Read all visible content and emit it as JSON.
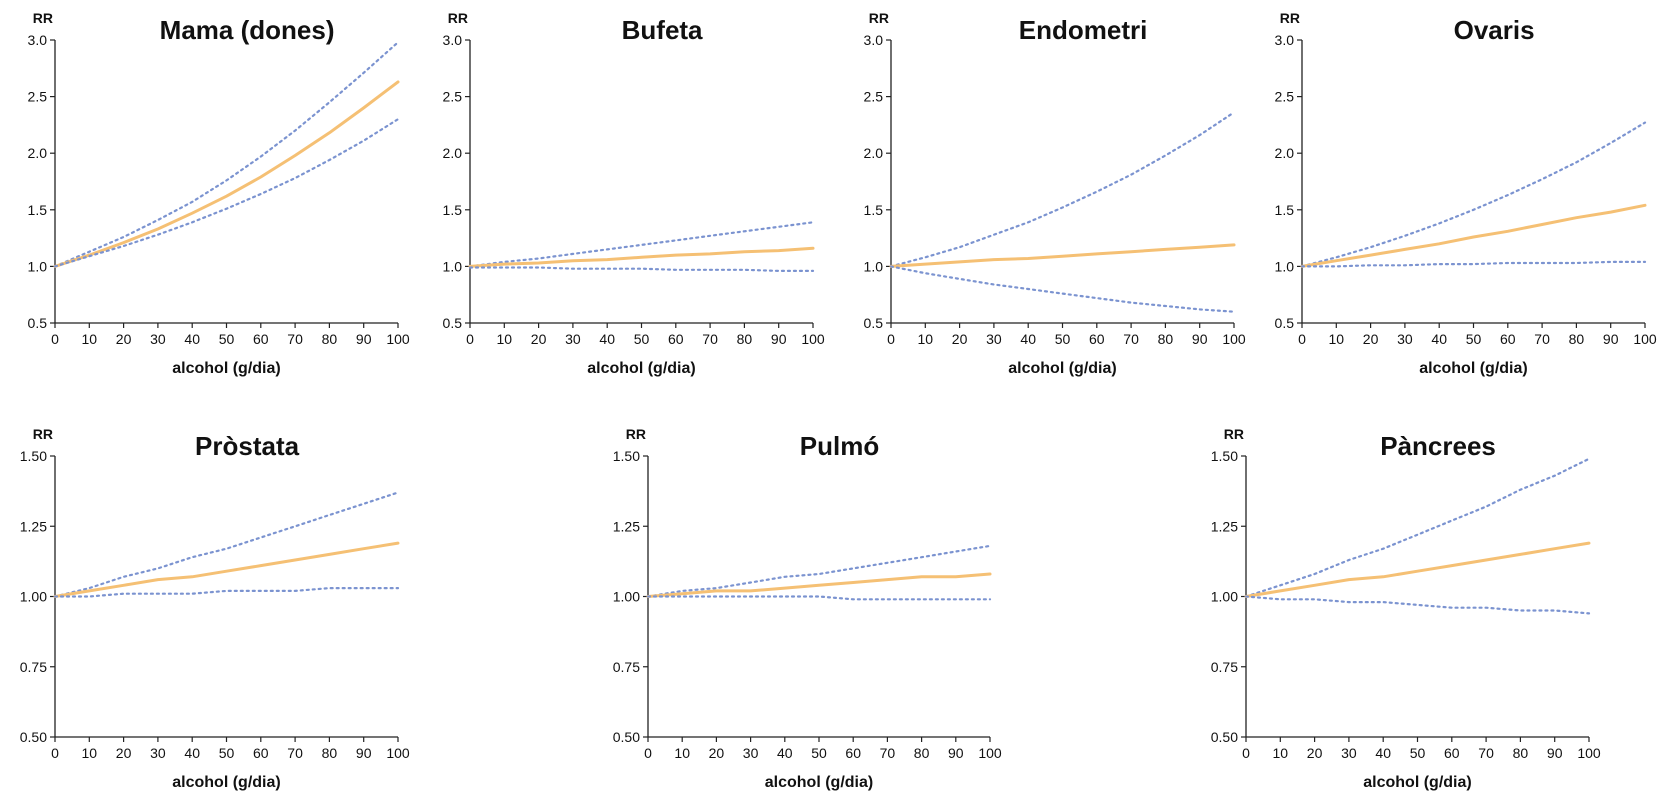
{
  "chart_data": [
    {
      "type": "line",
      "title": "Mama (dones)",
      "xlabel": "alcohol (g/dia)",
      "ylabel": "RR",
      "xlim": [
        0,
        100
      ],
      "ylim": [
        0.5,
        3.0
      ],
      "xticks": [
        "0",
        "10",
        "20",
        "30",
        "40",
        "50",
        "60",
        "70",
        "80",
        "90",
        "100"
      ],
      "yticks": [
        "0.5",
        "1.0",
        "1.5",
        "2.0",
        "2.5",
        "3.0"
      ],
      "x": [
        0,
        10,
        20,
        30,
        40,
        50,
        60,
        70,
        80,
        90,
        100
      ],
      "series": [
        {
          "role": "upper",
          "color": "#7b93d0",
          "values": [
            1.0,
            1.13,
            1.26,
            1.41,
            1.57,
            1.76,
            1.97,
            2.2,
            2.45,
            2.71,
            2.98
          ]
        },
        {
          "role": "estimate",
          "color": "#f5c074",
          "values": [
            1.0,
            1.1,
            1.21,
            1.33,
            1.47,
            1.62,
            1.79,
            1.98,
            2.18,
            2.4,
            2.63
          ]
        },
        {
          "role": "lower",
          "color": "#7b93d0",
          "values": [
            1.0,
            1.09,
            1.18,
            1.28,
            1.39,
            1.51,
            1.64,
            1.78,
            1.94,
            2.11,
            2.3
          ]
        }
      ]
    },
    {
      "type": "line",
      "title": "Bufeta",
      "xlabel": "alcohol (g/dia)",
      "ylabel": "RR",
      "xlim": [
        0,
        100
      ],
      "ylim": [
        0.5,
        3.0
      ],
      "xticks": [
        "0",
        "10",
        "20",
        "30",
        "40",
        "50",
        "60",
        "70",
        "80",
        "90",
        "100"
      ],
      "yticks": [
        "0.5",
        "1.0",
        "1.5",
        "2.0",
        "2.5",
        "3.0"
      ],
      "x": [
        0,
        10,
        20,
        30,
        40,
        50,
        60,
        70,
        80,
        90,
        100
      ],
      "series": [
        {
          "role": "upper",
          "color": "#7b93d0",
          "values": [
            1.0,
            1.04,
            1.07,
            1.11,
            1.15,
            1.19,
            1.23,
            1.27,
            1.31,
            1.35,
            1.39
          ]
        },
        {
          "role": "estimate",
          "color": "#f5c074",
          "values": [
            1.0,
            1.02,
            1.03,
            1.05,
            1.06,
            1.08,
            1.1,
            1.11,
            1.13,
            1.14,
            1.16
          ]
        },
        {
          "role": "lower",
          "color": "#7b93d0",
          "values": [
            0.99,
            0.99,
            0.99,
            0.98,
            0.98,
            0.98,
            0.97,
            0.97,
            0.97,
            0.96,
            0.96
          ]
        }
      ]
    },
    {
      "type": "line",
      "title": "Endometri",
      "xlabel": "alcohol (g/dia)",
      "ylabel": "RR",
      "xlim": [
        0,
        100
      ],
      "ylim": [
        0.5,
        3.0
      ],
      "xticks": [
        "0",
        "10",
        "20",
        "30",
        "40",
        "50",
        "60",
        "70",
        "80",
        "90",
        "100"
      ],
      "yticks": [
        "0.5",
        "1.0",
        "1.5",
        "2.0",
        "2.5",
        "3.0"
      ],
      "x": [
        0,
        10,
        20,
        30,
        40,
        50,
        60,
        70,
        80,
        90,
        100
      ],
      "series": [
        {
          "role": "upper",
          "color": "#7b93d0",
          "values": [
            1.0,
            1.08,
            1.17,
            1.28,
            1.39,
            1.52,
            1.66,
            1.81,
            1.98,
            2.16,
            2.36
          ]
        },
        {
          "role": "estimate",
          "color": "#f5c074",
          "values": [
            1.0,
            1.02,
            1.04,
            1.06,
            1.07,
            1.09,
            1.11,
            1.13,
            1.15,
            1.17,
            1.19
          ]
        },
        {
          "role": "lower",
          "color": "#7b93d0",
          "values": [
            1.0,
            0.94,
            0.89,
            0.84,
            0.8,
            0.76,
            0.72,
            0.68,
            0.65,
            0.62,
            0.6
          ]
        }
      ]
    },
    {
      "type": "line",
      "title": "Ovaris",
      "xlabel": "alcohol (g/dia)",
      "ylabel": "RR",
      "xlim": [
        0,
        100
      ],
      "ylim": [
        0.5,
        3.0
      ],
      "xticks": [
        "0",
        "10",
        "20",
        "30",
        "40",
        "50",
        "60",
        "70",
        "80",
        "90",
        "100"
      ],
      "yticks": [
        "0.5",
        "1.0",
        "1.5",
        "2.0",
        "2.5",
        "3.0"
      ],
      "x": [
        0,
        10,
        20,
        30,
        40,
        50,
        60,
        70,
        80,
        90,
        100
      ],
      "series": [
        {
          "role": "upper",
          "color": "#7b93d0",
          "values": [
            1.0,
            1.08,
            1.17,
            1.27,
            1.38,
            1.5,
            1.63,
            1.77,
            1.92,
            2.09,
            2.27
          ]
        },
        {
          "role": "estimate",
          "color": "#f5c074",
          "values": [
            1.0,
            1.05,
            1.1,
            1.15,
            1.2,
            1.26,
            1.31,
            1.37,
            1.43,
            1.48,
            1.54
          ]
        },
        {
          "role": "lower",
          "color": "#7b93d0",
          "values": [
            1.0,
            1.0,
            1.01,
            1.01,
            1.02,
            1.02,
            1.03,
            1.03,
            1.03,
            1.04,
            1.04
          ]
        }
      ]
    },
    {
      "type": "line",
      "title": "Pròstata",
      "xlabel": "alcohol (g/dia)",
      "ylabel": "RR",
      "xlim": [
        0,
        100
      ],
      "ylim": [
        0.5,
        1.5
      ],
      "xticks": [
        "0",
        "10",
        "20",
        "30",
        "40",
        "50",
        "60",
        "70",
        "80",
        "90",
        "100"
      ],
      "yticks": [
        "0.50",
        "0.75",
        "1.00",
        "1.25",
        "1.50"
      ],
      "x": [
        0,
        10,
        20,
        30,
        40,
        50,
        60,
        70,
        80,
        90,
        100
      ],
      "series": [
        {
          "role": "upper",
          "color": "#7b93d0",
          "values": [
            1.0,
            1.03,
            1.07,
            1.1,
            1.14,
            1.17,
            1.21,
            1.25,
            1.29,
            1.33,
            1.37
          ]
        },
        {
          "role": "estimate",
          "color": "#f5c074",
          "values": [
            1.0,
            1.02,
            1.04,
            1.06,
            1.07,
            1.09,
            1.11,
            1.13,
            1.15,
            1.17,
            1.19
          ]
        },
        {
          "role": "lower",
          "color": "#7b93d0",
          "values": [
            1.0,
            1.0,
            1.01,
            1.01,
            1.01,
            1.02,
            1.02,
            1.02,
            1.03,
            1.03,
            1.03
          ]
        }
      ]
    },
    {
      "type": "line",
      "title": "Pulmó",
      "xlabel": "alcohol (g/dia)",
      "ylabel": "RR",
      "xlim": [
        0,
        100
      ],
      "ylim": [
        0.5,
        1.5
      ],
      "xticks": [
        "0",
        "10",
        "20",
        "30",
        "40",
        "50",
        "60",
        "70",
        "80",
        "90",
        "100"
      ],
      "yticks": [
        "0.50",
        "0.75",
        "1.00",
        "1.25",
        "1.50"
      ],
      "x": [
        0,
        10,
        20,
        30,
        40,
        50,
        60,
        70,
        80,
        90,
        100
      ],
      "series": [
        {
          "role": "upper",
          "color": "#7b93d0",
          "values": [
            1.0,
            1.02,
            1.03,
            1.05,
            1.07,
            1.08,
            1.1,
            1.12,
            1.14,
            1.16,
            1.18
          ]
        },
        {
          "role": "estimate",
          "color": "#f5c074",
          "values": [
            1.0,
            1.01,
            1.02,
            1.02,
            1.03,
            1.04,
            1.05,
            1.06,
            1.07,
            1.07,
            1.08
          ]
        },
        {
          "role": "lower",
          "color": "#7b93d0",
          "values": [
            1.0,
            1.0,
            1.0,
            1.0,
            1.0,
            1.0,
            0.99,
            0.99,
            0.99,
            0.99,
            0.99
          ]
        }
      ]
    },
    {
      "type": "line",
      "title": "Pàncrees",
      "xlabel": "alcohol (g/dia)",
      "ylabel": "RR",
      "xlim": [
        0,
        100
      ],
      "ylim": [
        0.5,
        1.5
      ],
      "xticks": [
        "0",
        "10",
        "20",
        "30",
        "40",
        "50",
        "60",
        "70",
        "80",
        "90",
        "100"
      ],
      "yticks": [
        "0.50",
        "0.75",
        "1.00",
        "1.25",
        "1.50"
      ],
      "x": [
        0,
        10,
        20,
        30,
        40,
        50,
        60,
        70,
        80,
        90,
        100
      ],
      "series": [
        {
          "role": "upper",
          "color": "#7b93d0",
          "values": [
            1.0,
            1.04,
            1.08,
            1.13,
            1.17,
            1.22,
            1.27,
            1.32,
            1.38,
            1.43,
            1.49
          ]
        },
        {
          "role": "estimate",
          "color": "#f5c074",
          "values": [
            1.0,
            1.02,
            1.04,
            1.06,
            1.07,
            1.09,
            1.11,
            1.13,
            1.15,
            1.17,
            1.19
          ]
        },
        {
          "role": "lower",
          "color": "#7b93d0",
          "values": [
            1.0,
            0.99,
            0.99,
            0.98,
            0.98,
            0.97,
            0.96,
            0.96,
            0.95,
            0.95,
            0.94
          ]
        }
      ]
    }
  ]
}
